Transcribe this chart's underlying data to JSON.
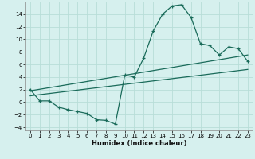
{
  "xlabel": "Humidex (Indice chaleur)",
  "background_color": "#d6f0ee",
  "grid_color": "#b8ddd8",
  "line_color": "#1a6b5a",
  "xlim": [
    -0.5,
    23.5
  ],
  "ylim": [
    -4.5,
    16
  ],
  "xticks": [
    0,
    1,
    2,
    3,
    4,
    5,
    6,
    7,
    8,
    9,
    10,
    11,
    12,
    13,
    14,
    15,
    16,
    17,
    18,
    19,
    20,
    21,
    22,
    23
  ],
  "yticks": [
    -4,
    -2,
    0,
    2,
    4,
    6,
    8,
    10,
    12,
    14
  ],
  "main_x": [
    0,
    1,
    2,
    3,
    4,
    5,
    6,
    7,
    8,
    9,
    10,
    11,
    12,
    13,
    14,
    15,
    16,
    17,
    18,
    19,
    20,
    21,
    22,
    23
  ],
  "main_y": [
    2.0,
    0.2,
    0.2,
    -0.8,
    -1.2,
    -1.5,
    -1.8,
    -2.8,
    -2.9,
    -3.5,
    4.3,
    4.0,
    7.0,
    11.3,
    14.0,
    15.3,
    15.5,
    13.5,
    9.3,
    9.0,
    7.5,
    8.8,
    8.5,
    6.5
  ],
  "line1_x": [
    0,
    23
  ],
  "line1_y": [
    1.8,
    7.5
  ],
  "line2_x": [
    0,
    23
  ],
  "line2_y": [
    1.0,
    5.2
  ],
  "spine_color": "#888888"
}
